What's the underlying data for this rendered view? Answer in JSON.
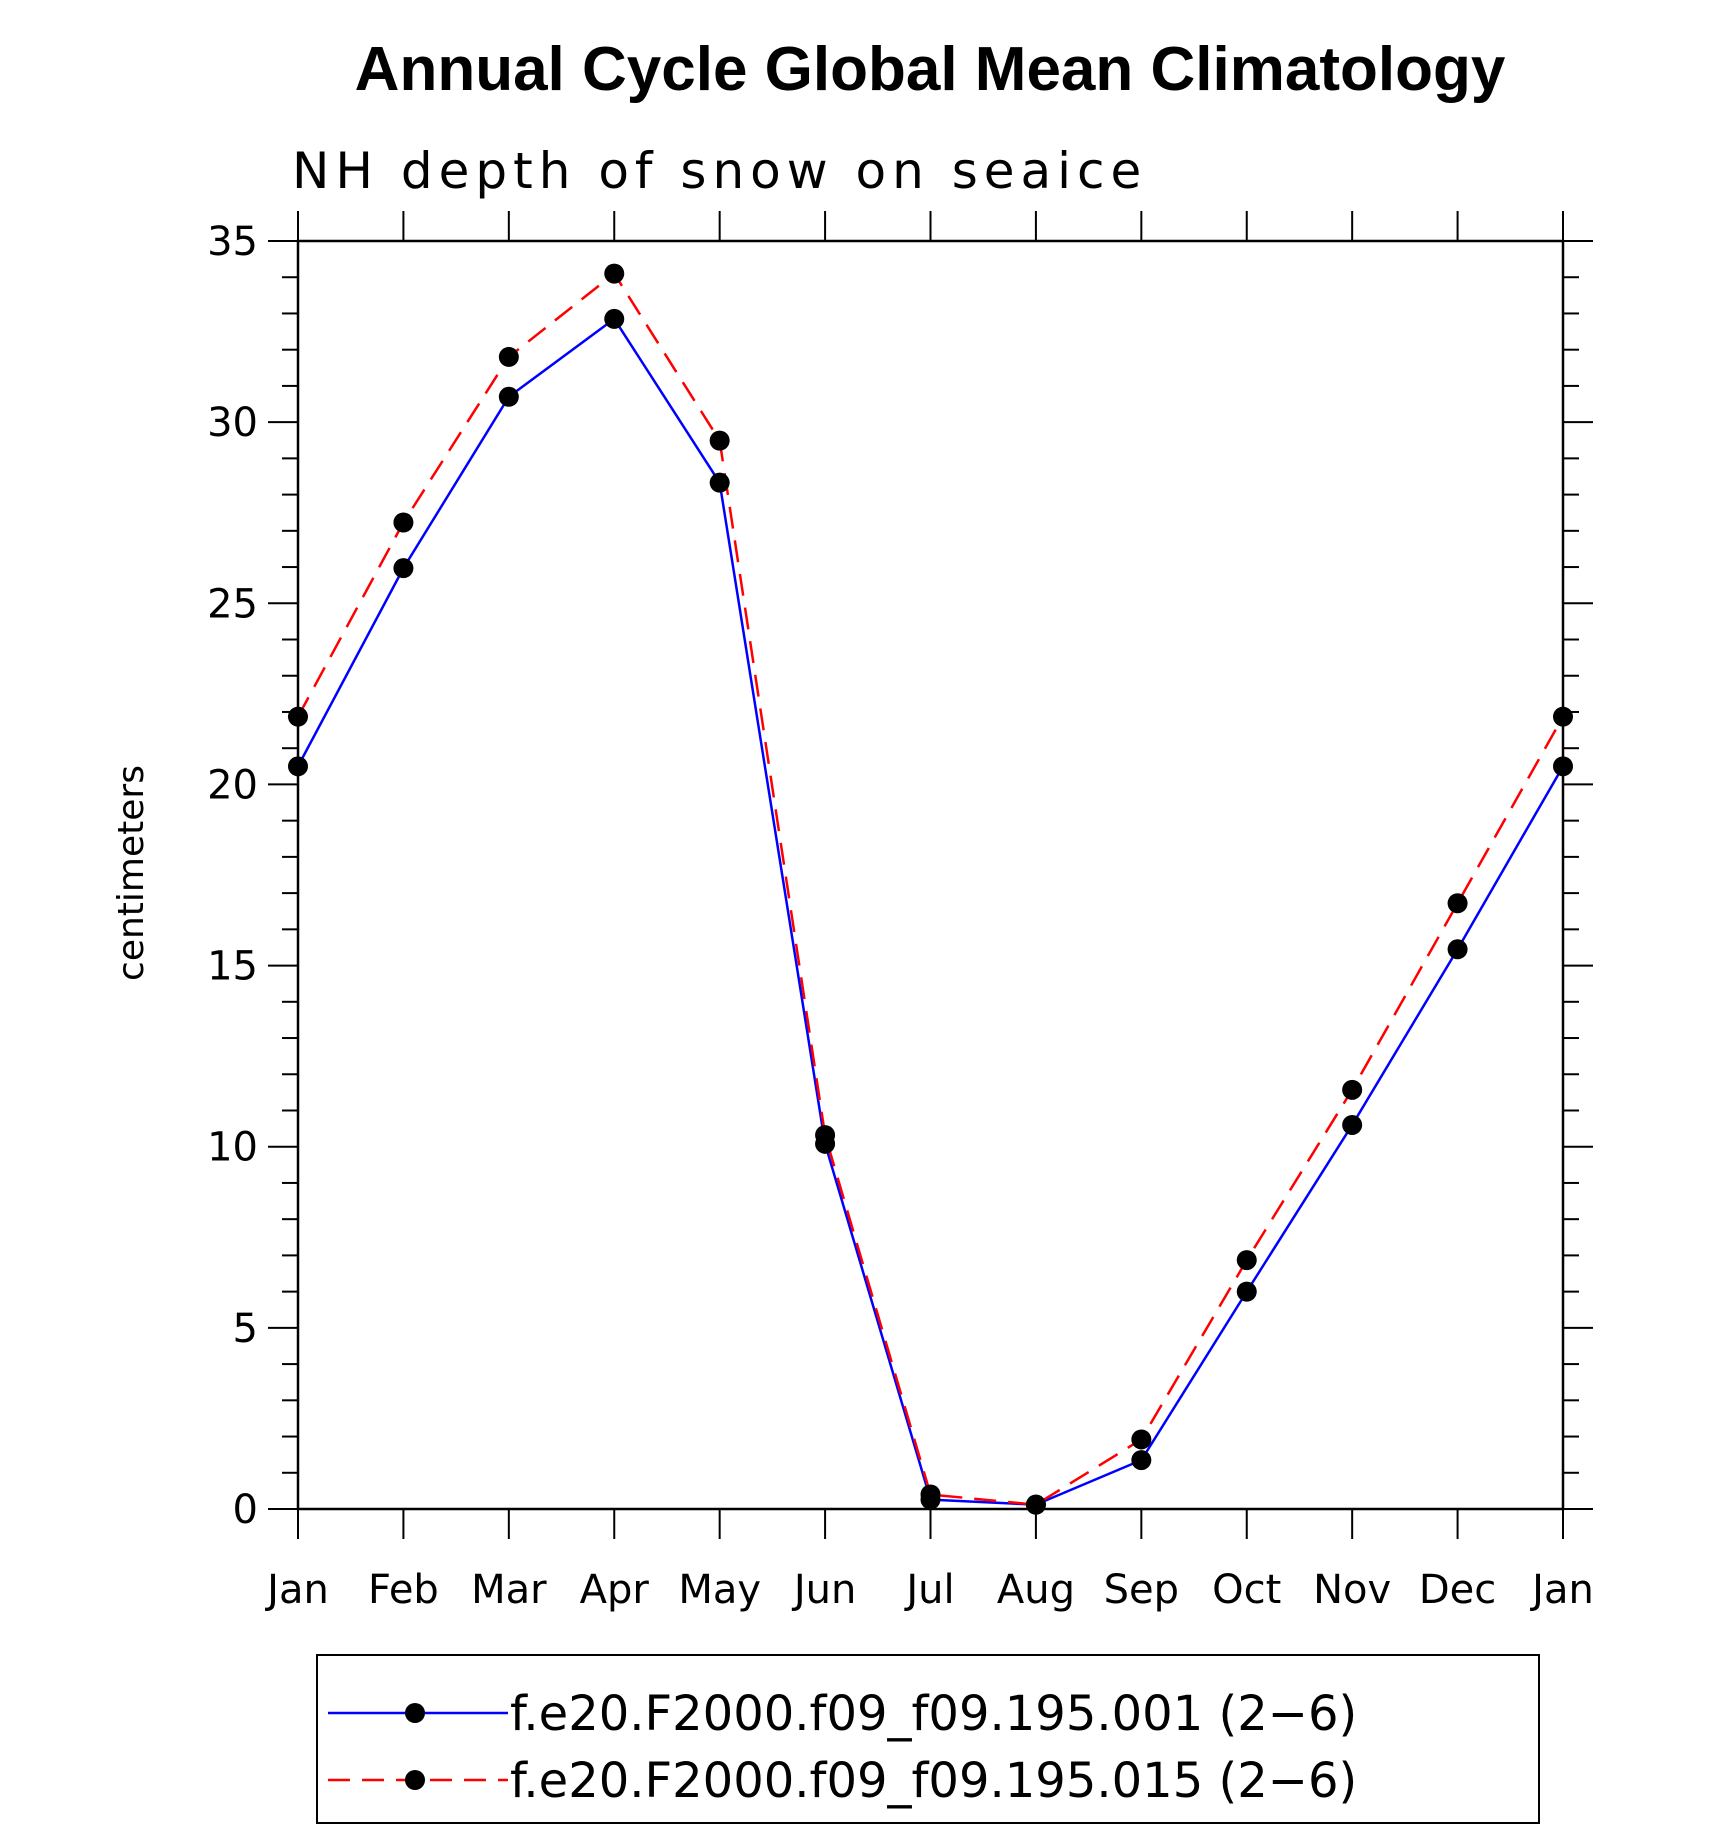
{
  "chart_data": {
    "type": "line",
    "title": "Annual Cycle Global Mean Climatology",
    "subtitle": "NH depth of snow on seaice",
    "ylabel": "centimeters",
    "xlabel": "",
    "ylim": [
      0,
      35
    ],
    "yticks": [
      0,
      5,
      10,
      15,
      20,
      25,
      30,
      35
    ],
    "categories": [
      "Jan",
      "Feb",
      "Mar",
      "Apr",
      "May",
      "Jun",
      "Jul",
      "Aug",
      "Sep",
      "Oct",
      "Nov",
      "Dec",
      "Jan"
    ],
    "grid": false,
    "legend_position": "bottom",
    "series": [
      {
        "name": "f.e20.F2000.f09_f09.195.001 (2−6)",
        "color": "#0000ff",
        "dash": "solid",
        "marker": "filled-circle",
        "values": [
          20.5,
          25.97,
          30.7,
          32.85,
          28.33,
          10.08,
          0.26,
          0.12,
          1.35,
          6.0,
          10.6,
          15.45,
          20.5
        ]
      },
      {
        "name": "f.e20.F2000.f09_f09.195.015 (2−6)",
        "color": "#ff0000",
        "dash": "dashed",
        "marker": "filled-circle",
        "values": [
          21.87,
          27.23,
          31.8,
          34.1,
          29.49,
          10.32,
          0.4,
          0.12,
          1.92,
          6.87,
          11.57,
          16.72,
          21.87
        ]
      }
    ]
  }
}
